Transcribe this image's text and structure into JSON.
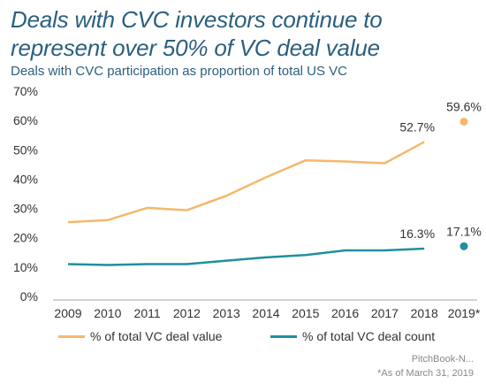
{
  "title": "Deals with CVC investors continue to represent over 50% of VC deal value",
  "subtitle": "Deals with CVC participation as proportion of total US VC",
  "source": "PitchBook-N...",
  "note": "*As of March 31, 2019",
  "colors": {
    "series_value": "#f5b86b",
    "series_count": "#1f8fa0"
  },
  "chart_data": {
    "type": "line",
    "categories": [
      "2009",
      "2010",
      "2011",
      "2012",
      "2013",
      "2014",
      "2015",
      "2016",
      "2017",
      "2018",
      "2019*"
    ],
    "ylim": [
      0,
      70
    ],
    "yticks": [
      "0%",
      "10%",
      "20%",
      "30%",
      "40%",
      "50%",
      "60%",
      "70%"
    ],
    "grid": false,
    "legend_position": "bottom",
    "series": [
      {
        "name": "% of total VC deal value",
        "values": [
          25.3,
          26.0,
          30.2,
          29.4,
          34.3,
          40.6,
          46.4,
          46.0,
          45.4,
          52.7,
          59.6
        ],
        "standalone_last_point": true,
        "labels": {
          "9": "52.7%",
          "10": "59.6%"
        }
      },
      {
        "name": "% of total VC deal count",
        "values": [
          11.0,
          10.7,
          11.0,
          11.0,
          12.2,
          13.3,
          14.1,
          15.7,
          15.7,
          16.3,
          17.1
        ],
        "standalone_last_point": true,
        "labels": {
          "9": "16.3%",
          "10": "17.1%"
        }
      }
    ]
  }
}
